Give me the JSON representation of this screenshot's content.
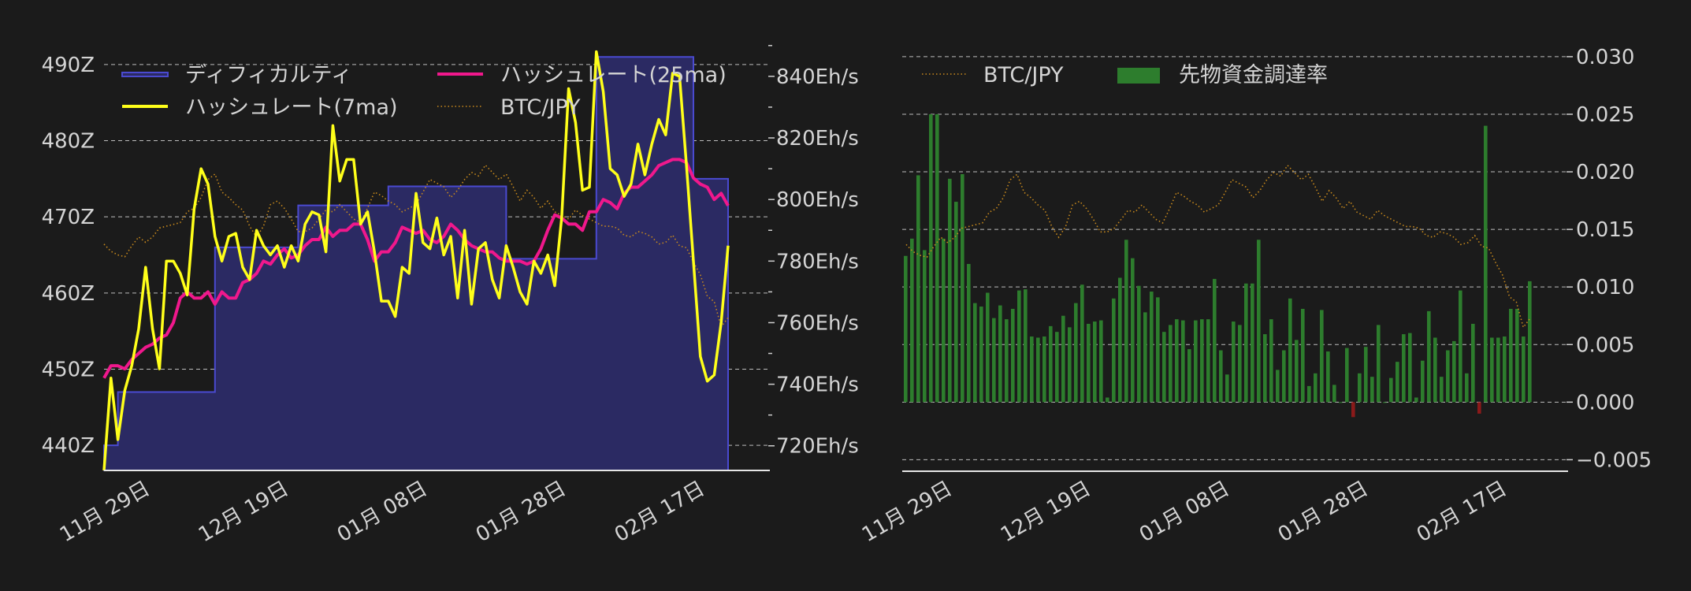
{
  "chart_data": [
    {
      "type": "line",
      "title": "",
      "x_tick_labels": [
        "11月 29日",
        "12月 19日",
        "01月 08日",
        "01月 28日",
        "02月 17日"
      ],
      "x_days_offsets": [
        0,
        20,
        40,
        60,
        80
      ],
      "left_axis": {
        "ylim": [
          436.7,
          493.3
        ],
        "ticks": [
          440,
          450,
          460,
          470,
          480,
          490
        ],
        "tick_labels": [
          "440Z",
          "450Z",
          "460Z",
          "470Z",
          "480Z",
          "490Z"
        ]
      },
      "right_axis": {
        "ylim": [
          712,
          852
        ],
        "ticks": [
          720,
          740,
          760,
          780,
          800,
          820,
          840
        ],
        "tick_labels": [
          "720Eh/s",
          "740Eh/s",
          "760Eh/s",
          "780Eh/s",
          "800Eh/s",
          "820Eh/s",
          "840Eh/s"
        ]
      },
      "grid": "horizontal",
      "legend_placement": "top",
      "legend": [
        {
          "name": "ディフィカルティ",
          "color": "#4a4ad0",
          "style": "fill"
        },
        {
          "name": "ハッシュレート(25ma)",
          "color": "#f0188c",
          "style": "line"
        },
        {
          "name": "ハッシュレート(7ma)",
          "color": "#ffff1a",
          "style": "line"
        },
        {
          "name": "BTC/JPY",
          "color": "#c98a1c",
          "style": "dotted"
        }
      ],
      "difficulty_steps": [
        {
          "start": 0,
          "end": 2,
          "value": 440
        },
        {
          "start": 2,
          "end": 16,
          "value": 447
        },
        {
          "start": 16,
          "end": 28,
          "value": 466
        },
        {
          "start": 28,
          "end": 41,
          "value": 471.5
        },
        {
          "start": 41,
          "end": 58,
          "value": 474
        },
        {
          "start": 58,
          "end": 71,
          "value": 464.5
        },
        {
          "start": 71,
          "end": 85,
          "value": 491
        },
        {
          "start": 85,
          "end": 90,
          "value": 475
        }
      ],
      "hash_7ma": [
        712,
        742,
        722,
        738,
        746,
        758,
        778,
        758,
        745,
        780,
        780,
        776,
        769,
        797,
        810,
        805,
        788,
        780,
        788,
        789,
        778,
        774,
        790,
        785,
        782,
        785,
        778,
        785,
        780,
        792,
        796,
        795,
        783,
        824,
        806,
        813,
        813,
        792,
        796,
        783,
        767,
        767,
        762,
        778,
        776,
        802,
        786,
        784,
        794,
        782,
        788,
        768,
        790,
        766,
        784,
        786,
        774,
        768,
        785,
        778,
        770,
        766,
        780,
        776,
        782,
        772,
        794,
        836,
        825,
        803,
        804,
        848,
        835,
        810,
        808,
        801,
        805,
        818,
        808,
        818,
        826,
        821,
        841,
        840,
        811,
        780,
        749,
        741,
        743,
        760,
        785
      ],
      "hash_25ma": [
        742,
        746,
        746,
        745,
        748,
        750,
        752,
        753,
        755,
        756,
        760,
        768,
        770,
        768,
        768,
        770,
        766,
        770,
        768,
        768,
        773,
        774,
        776,
        780,
        779,
        782,
        784,
        781,
        782,
        785,
        787,
        787,
        791,
        788,
        790,
        790,
        792,
        792,
        787,
        780,
        783,
        783,
        786,
        791,
        790,
        789,
        790,
        787,
        786,
        788,
        792,
        790,
        787,
        785,
        784,
        783,
        783,
        781,
        780,
        780,
        780,
        779,
        780,
        784,
        790,
        795,
        794,
        792,
        792,
        790,
        796,
        796,
        800,
        799,
        797,
        802,
        804,
        804,
        806,
        808,
        811,
        812,
        813,
        813,
        812,
        807,
        805,
        804,
        800,
        802,
        798
      ],
      "btc_jpy": [
        786,
        782,
        780,
        779,
        785,
        790,
        787,
        790,
        795,
        796,
        797,
        798,
        804,
        806,
        812,
        822,
        825,
        815,
        812,
        808,
        805,
        796,
        790,
        796,
        808,
        810,
        806,
        800,
        793,
        793,
        795,
        800,
        805,
        804,
        808,
        804,
        800,
        798,
        806,
        815,
        813,
        810,
        808,
        804,
        806,
        808,
        815,
        822,
        820,
        818,
        812,
        816,
        822,
        826,
        824,
        830,
        826,
        822,
        825,
        818,
        810,
        816,
        812,
        806,
        810,
        804,
        802,
        800,
        805,
        802,
        800,
        798,
        796,
        796,
        795,
        791,
        790,
        793,
        792,
        790,
        786,
        787,
        791,
        785,
        784,
        776,
        769,
        757,
        754,
        740,
        745
      ]
    },
    {
      "type": "bar",
      "title": "",
      "x_tick_labels": [
        "11月 29日",
        "12月 19日",
        "01月 08日",
        "01月 28日",
        "02月 17日"
      ],
      "x_days_offsets": [
        0,
        20,
        40,
        60,
        80
      ],
      "right_axis": {
        "ylim": [
          -0.006,
          0.0315
        ],
        "ticks": [
          -0.005,
          0,
          0.005,
          0.01,
          0.015,
          0.02,
          0.025,
          0.03
        ],
        "tick_labels": [
          "−0.005",
          "0.000",
          "0.005",
          "0.010",
          "0.015",
          "0.020",
          "0.025",
          "0.030"
        ]
      },
      "grid": "horizontal",
      "legend_placement": "top-left",
      "legend": [
        {
          "name": "BTC/JPY",
          "color": "#c98a1c",
          "style": "dotted"
        },
        {
          "name": "先物資金調達率",
          "color": "#2d7d2d",
          "style": "bar"
        }
      ],
      "bar_color_pos": "#2d7d2d",
      "bar_color_neg": "#8b1a1a",
      "funding_rate": [
        0.0127,
        0.0142,
        0.0197,
        0.0132,
        0.025,
        0.025,
        0.0142,
        0.0194,
        0.0174,
        0.0198,
        0.012,
        0.0086,
        0.0083,
        0.0095,
        0.0073,
        0.0084,
        0.0072,
        0.0081,
        0.0097,
        0.0098,
        0.0057,
        0.0056,
        0.0057,
        0.0066,
        0.0061,
        0.0075,
        0.0065,
        0.0086,
        0.0102,
        0.0068,
        0.007,
        0.0071,
        0.0004,
        0.009,
        0.0108,
        0.0141,
        0.0125,
        0.0101,
        0.0078,
        0.0096,
        0.0091,
        0.0061,
        0.0067,
        0.0072,
        0.0071,
        0.0046,
        0.0071,
        0.0072,
        0.0072,
        0.0107,
        0.0045,
        0.0024,
        0.007,
        0.0067,
        0.0103,
        0.0103,
        0.0141,
        0.0059,
        0.0072,
        0.0028,
        0.0045,
        0.009,
        0.0054,
        0.0081,
        0.0014,
        0.0025,
        0.008,
        0.0044,
        0.0015,
        0.0,
        0.0047,
        -0.0013,
        0.0025,
        0.0048,
        0.0022,
        0.0067,
        0.0,
        0.0021,
        0.0035,
        0.0059,
        0.006,
        0.0004,
        0.0036,
        0.0079,
        0.0056,
        0.0022,
        0.0045,
        0.0053,
        0.0097,
        0.0025,
        0.0068,
        -0.001,
        0.024,
        0.0056,
        0.0056,
        0.0057,
        0.0081,
        0.0081,
        0.0057,
        0.0105
      ],
      "btc_jpy": [
        786,
        782,
        780,
        779,
        785,
        790,
        787,
        790,
        795,
        796,
        797,
        798,
        804,
        806,
        812,
        822,
        825,
        815,
        812,
        808,
        805,
        796,
        790,
        796,
        808,
        810,
        806,
        800,
        793,
        793,
        795,
        800,
        805,
        804,
        808,
        804,
        800,
        798,
        806,
        815,
        813,
        810,
        808,
        804,
        806,
        808,
        815,
        822,
        820,
        818,
        812,
        816,
        822,
        826,
        824,
        830,
        826,
        822,
        825,
        818,
        810,
        816,
        812,
        806,
        810,
        804,
        802,
        800,
        805,
        802,
        800,
        798,
        796,
        796,
        795,
        791,
        790,
        793,
        792,
        790,
        786,
        787,
        791,
        785,
        784,
        776,
        769,
        757,
        754,
        740,
        745
      ]
    }
  ]
}
